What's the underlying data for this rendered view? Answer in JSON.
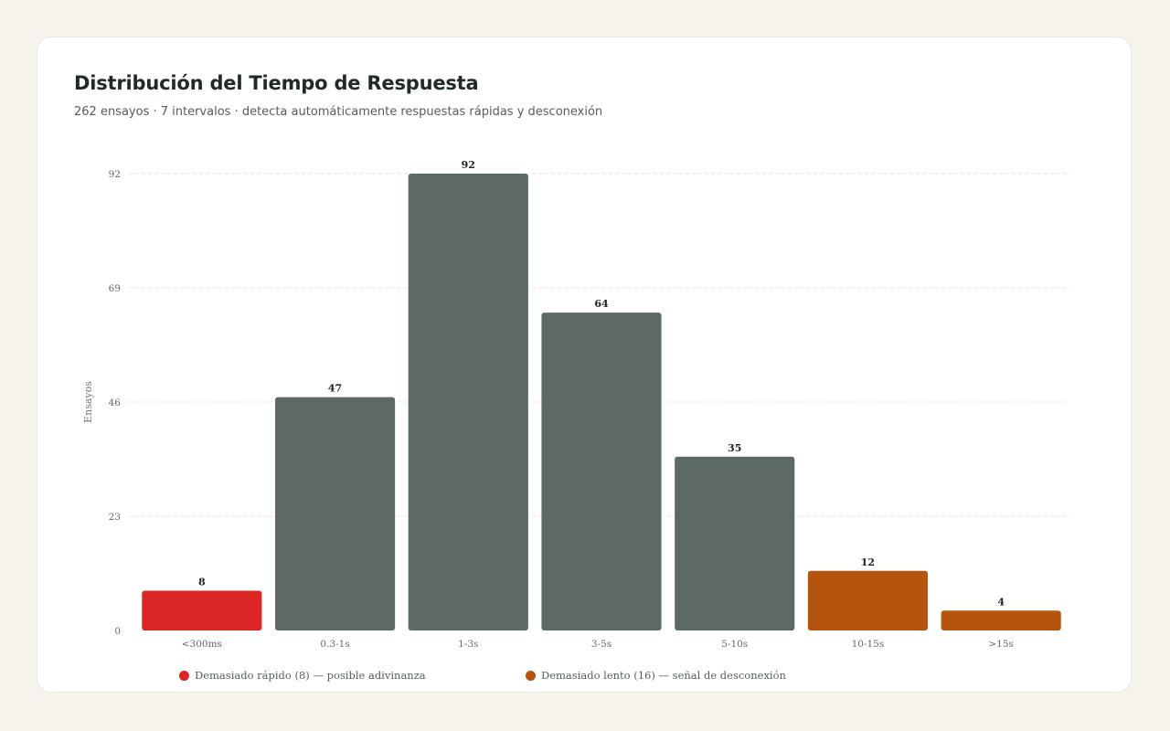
{
  "header": {
    "title": "Distribución del Tiempo de Respuesta",
    "subtitle": "262 ensayos · 7 intervalos · detecta automáticamente respuestas rápidas y desconexión"
  },
  "legend": {
    "fast": {
      "label": "Demasiado rápido (8) — posible adivinanza",
      "color": "#dc2626"
    },
    "slow": {
      "label": "Demasiado lento (16) — señal de desconexión",
      "color": "#b5540c"
    }
  },
  "colors": {
    "normal": "#5c6966",
    "fast": "#dc2626",
    "slow": "#b5540c",
    "grid": "#e5e5e5"
  },
  "chart_data": {
    "type": "bar",
    "categories": [
      "<300ms",
      "0.3-1s",
      "1-3s",
      "3-5s",
      "5-10s",
      "10-15s",
      ">15s"
    ],
    "values": [
      8,
      47,
      92,
      64,
      35,
      12,
      4
    ],
    "categories_flag": [
      "fast",
      "normal",
      "normal",
      "normal",
      "normal",
      "slow",
      "slow"
    ],
    "ylabel": "Ensayos",
    "xlabel": "",
    "ylim": [
      0,
      92
    ],
    "yticks": [
      0,
      23,
      46,
      69,
      92
    ],
    "grid": true,
    "legend_position": "bottom"
  }
}
